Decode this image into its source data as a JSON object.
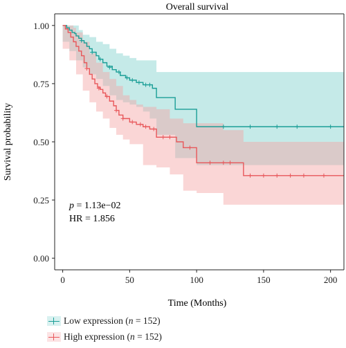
{
  "chart_data": {
    "type": "line",
    "title": "Overall survival",
    "xlabel": "Time (Months)",
    "ylabel": "Survival probability",
    "xlim": [
      -6,
      210
    ],
    "ylim": [
      -0.05,
      1.05
    ],
    "xticks": [
      0,
      50,
      100,
      150,
      200
    ],
    "xtick_labels": [
      "0",
      "50",
      "100",
      "150",
      "200"
    ],
    "yticks": [
      0,
      0.25,
      0.5,
      0.75,
      1.0
    ],
    "ytick_labels": [
      "0.00",
      "0.25",
      "0.50",
      "0.75",
      "1.00"
    ],
    "annotations": {
      "p_label": "p",
      "p_value": " = 1.13e−02",
      "hr": "HR = 1.856"
    },
    "series": [
      {
        "name": "Low expression",
        "n_text": "152",
        "color": "#1a9e96",
        "band_color": "#7fd0cc",
        "steps": [
          [
            0,
            1.0
          ],
          [
            3,
            0.99
          ],
          [
            5,
            0.98
          ],
          [
            7,
            0.97
          ],
          [
            9,
            0.965
          ],
          [
            10,
            0.955
          ],
          [
            12,
            0.945
          ],
          [
            14,
            0.935
          ],
          [
            16,
            0.925
          ],
          [
            18,
            0.91
          ],
          [
            20,
            0.9
          ],
          [
            22,
            0.885
          ],
          [
            25,
            0.87
          ],
          [
            27,
            0.855
          ],
          [
            30,
            0.84
          ],
          [
            33,
            0.825
          ],
          [
            37,
            0.81
          ],
          [
            40,
            0.8
          ],
          [
            43,
            0.785
          ],
          [
            47,
            0.775
          ],
          [
            50,
            0.765
          ],
          [
            55,
            0.755
          ],
          [
            60,
            0.745
          ],
          [
            67,
            0.73
          ],
          [
            70,
            0.69
          ],
          [
            84,
            0.64
          ],
          [
            100,
            0.565
          ],
          [
            210,
            0.565
          ]
        ],
        "lower": [
          [
            0,
            0.96
          ],
          [
            5,
            0.93
          ],
          [
            10,
            0.89
          ],
          [
            15,
            0.85
          ],
          [
            20,
            0.82
          ],
          [
            25,
            0.79
          ],
          [
            30,
            0.77
          ],
          [
            35,
            0.74
          ],
          [
            40,
            0.7
          ],
          [
            45,
            0.68
          ],
          [
            50,
            0.67
          ],
          [
            55,
            0.66
          ],
          [
            60,
            0.65
          ],
          [
            65,
            0.63
          ],
          [
            70,
            0.6
          ],
          [
            84,
            0.53
          ],
          [
            100,
            0.43
          ],
          [
            120,
            0.4
          ],
          [
            210,
            0.4
          ]
        ],
        "upper": [
          [
            0,
            1.0
          ],
          [
            10,
            1.0
          ],
          [
            12,
            0.98
          ],
          [
            15,
            0.96
          ],
          [
            20,
            0.95
          ],
          [
            25,
            0.93
          ],
          [
            30,
            0.92
          ],
          [
            35,
            0.9
          ],
          [
            40,
            0.88
          ],
          [
            45,
            0.87
          ],
          [
            50,
            0.86
          ],
          [
            55,
            0.85
          ],
          [
            65,
            0.85
          ],
          [
            70,
            0.8
          ],
          [
            100,
            0.8
          ],
          [
            210,
            0.8
          ]
        ],
        "censors": [
          [
            14,
            0.935
          ],
          [
            22,
            0.885
          ],
          [
            28,
            0.855
          ],
          [
            35,
            0.82
          ],
          [
            42,
            0.8
          ],
          [
            48,
            0.775
          ],
          [
            52,
            0.765
          ],
          [
            57,
            0.755
          ],
          [
            62,
            0.745
          ],
          [
            65,
            0.745
          ],
          [
            120,
            0.565
          ],
          [
            140,
            0.565
          ],
          [
            160,
            0.565
          ],
          [
            175,
            0.565
          ],
          [
            200,
            0.565
          ]
        ]
      },
      {
        "name": "High expression",
        "n_text": "152",
        "color": "#e8575a",
        "band_color": "#f4a3a5",
        "steps": [
          [
            0,
            1.0
          ],
          [
            2,
            0.985
          ],
          [
            4,
            0.97
          ],
          [
            6,
            0.95
          ],
          [
            8,
            0.93
          ],
          [
            10,
            0.91
          ],
          [
            12,
            0.89
          ],
          [
            14,
            0.87
          ],
          [
            16,
            0.84
          ],
          [
            18,
            0.815
          ],
          [
            20,
            0.79
          ],
          [
            22,
            0.77
          ],
          [
            24,
            0.75
          ],
          [
            26,
            0.735
          ],
          [
            28,
            0.725
          ],
          [
            30,
            0.71
          ],
          [
            32,
            0.695
          ],
          [
            35,
            0.675
          ],
          [
            38,
            0.655
          ],
          [
            40,
            0.635
          ],
          [
            42,
            0.615
          ],
          [
            45,
            0.6
          ],
          [
            50,
            0.585
          ],
          [
            55,
            0.575
          ],
          [
            60,
            0.565
          ],
          [
            65,
            0.555
          ],
          [
            70,
            0.52
          ],
          [
            85,
            0.5
          ],
          [
            90,
            0.475
          ],
          [
            100,
            0.41
          ],
          [
            135,
            0.355
          ],
          [
            210,
            0.355
          ]
        ],
        "lower": [
          [
            0,
            0.94
          ],
          [
            5,
            0.9
          ],
          [
            10,
            0.85
          ],
          [
            15,
            0.79
          ],
          [
            20,
            0.72
          ],
          [
            25,
            0.67
          ],
          [
            30,
            0.63
          ],
          [
            35,
            0.6
          ],
          [
            40,
            0.56
          ],
          [
            45,
            0.53
          ],
          [
            50,
            0.51
          ],
          [
            60,
            0.49
          ],
          [
            70,
            0.4
          ],
          [
            80,
            0.39
          ],
          [
            90,
            0.36
          ],
          [
            100,
            0.29
          ],
          [
            120,
            0.28
          ],
          [
            135,
            0.23
          ],
          [
            210,
            0.23
          ]
        ],
        "upper": [
          [
            0,
            1.0
          ],
          [
            5,
            1.0
          ],
          [
            8,
            0.99
          ],
          [
            10,
            0.97
          ],
          [
            15,
            0.93
          ],
          [
            20,
            0.88
          ],
          [
            25,
            0.84
          ],
          [
            30,
            0.8
          ],
          [
            35,
            0.77
          ],
          [
            40,
            0.74
          ],
          [
            45,
            0.7
          ],
          [
            50,
            0.68
          ],
          [
            55,
            0.66
          ],
          [
            60,
            0.65
          ],
          [
            70,
            0.64
          ],
          [
            80,
            0.6
          ],
          [
            90,
            0.58
          ],
          [
            100,
            0.58
          ],
          [
            120,
            0.55
          ],
          [
            135,
            0.5
          ],
          [
            210,
            0.5
          ]
        ],
        "censors": [
          [
            18,
            0.815
          ],
          [
            27,
            0.73
          ],
          [
            33,
            0.695
          ],
          [
            40,
            0.635
          ],
          [
            45,
            0.6
          ],
          [
            52,
            0.585
          ],
          [
            58,
            0.575
          ],
          [
            62,
            0.565
          ],
          [
            68,
            0.555
          ],
          [
            75,
            0.52
          ],
          [
            80,
            0.52
          ],
          [
            95,
            0.475
          ],
          [
            110,
            0.41
          ],
          [
            120,
            0.41
          ],
          [
            125,
            0.41
          ],
          [
            140,
            0.355
          ],
          [
            150,
            0.355
          ],
          [
            160,
            0.355
          ],
          [
            170,
            0.355
          ],
          [
            180,
            0.355
          ],
          [
            195,
            0.355
          ]
        ]
      }
    ],
    "legend": {
      "position": "bottom-left",
      "n_label": "n",
      "paren_open": " (",
      "equals": " = ",
      "paren_close": ")"
    }
  }
}
